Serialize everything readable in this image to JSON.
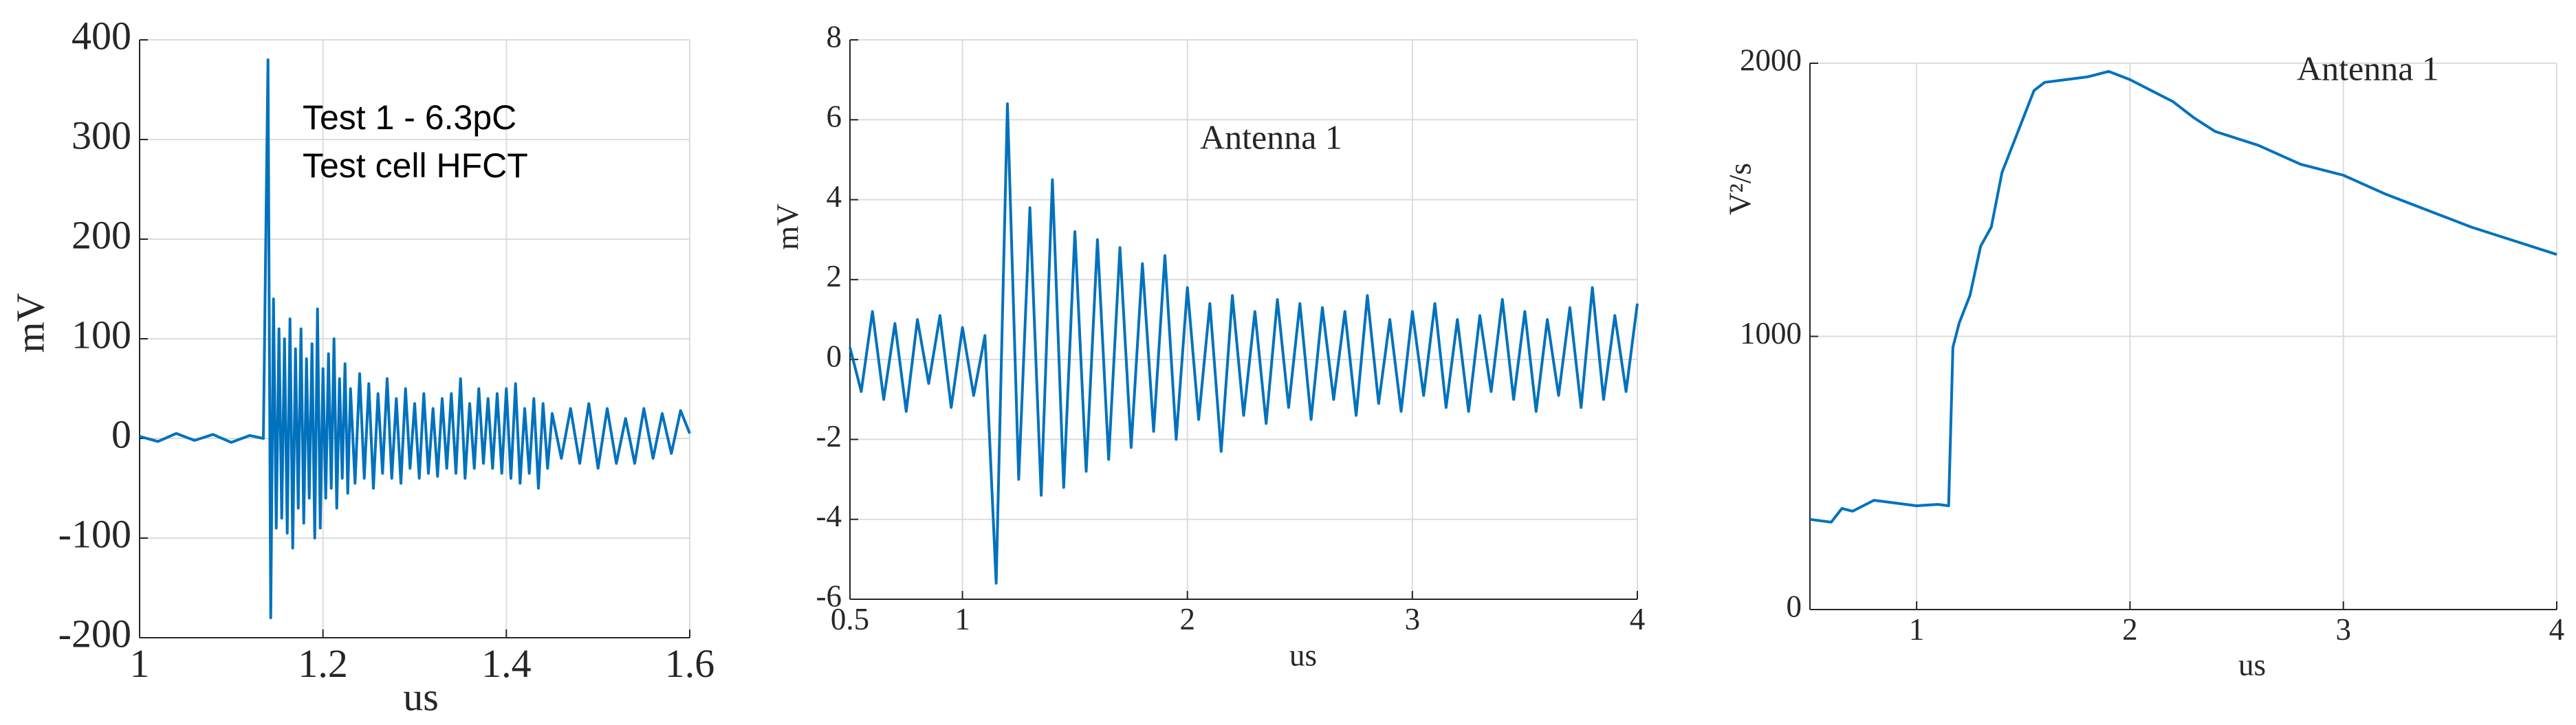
{
  "chart_data": [
    {
      "type": "line",
      "xlabel": "us",
      "ylabel": "mV",
      "annotations": [
        "Test 1 - 6.3pC",
        "Test cell HFCT"
      ],
      "color": "#0072bd",
      "grid": true,
      "xlim": [
        1,
        1.6
      ],
      "ylim": [
        -200,
        400
      ],
      "xticks": [
        1,
        1.2,
        1.4,
        1.6
      ],
      "yticks": [
        -200,
        -100,
        0,
        100,
        200,
        300,
        400
      ],
      "x": [
        1,
        1.02,
        1.04,
        1.06,
        1.08,
        1.1,
        1.12,
        1.135,
        1.14,
        1.143,
        1.146,
        1.149,
        1.152,
        1.155,
        1.158,
        1.161,
        1.164,
        1.167,
        1.17,
        1.173,
        1.176,
        1.179,
        1.182,
        1.185,
        1.188,
        1.191,
        1.194,
        1.197,
        1.2,
        1.203,
        1.206,
        1.209,
        1.212,
        1.215,
        1.218,
        1.221,
        1.224,
        1.227,
        1.23,
        1.235,
        1.24,
        1.245,
        1.25,
        1.255,
        1.26,
        1.265,
        1.27,
        1.275,
        1.28,
        1.285,
        1.29,
        1.295,
        1.3,
        1.305,
        1.31,
        1.315,
        1.32,
        1.325,
        1.33,
        1.335,
        1.34,
        1.345,
        1.35,
        1.355,
        1.36,
        1.365,
        1.37,
        1.375,
        1.38,
        1.385,
        1.39,
        1.395,
        1.4,
        1.405,
        1.41,
        1.415,
        1.42,
        1.425,
        1.43,
        1.435,
        1.44,
        1.445,
        1.45,
        1.46,
        1.47,
        1.48,
        1.49,
        1.5,
        1.51,
        1.52,
        1.53,
        1.54,
        1.55,
        1.56,
        1.57,
        1.58,
        1.59,
        1.6
      ],
      "values": [
        2,
        -3,
        5,
        -2,
        4,
        -4,
        3,
        0,
        380,
        -180,
        140,
        -90,
        110,
        -80,
        100,
        -95,
        120,
        -110,
        90,
        -70,
        110,
        -85,
        80,
        -60,
        95,
        -100,
        130,
        -90,
        70,
        -60,
        85,
        -50,
        100,
        -70,
        60,
        -40,
        75,
        -55,
        50,
        -45,
        65,
        -40,
        55,
        -50,
        45,
        -35,
        60,
        -40,
        40,
        -45,
        50,
        -30,
        35,
        -40,
        45,
        -35,
        30,
        -38,
        40,
        -30,
        45,
        -35,
        60,
        -40,
        35,
        -30,
        50,
        -25,
        40,
        -30,
        45,
        -35,
        50,
        -40,
        55,
        -45,
        30,
        -35,
        40,
        -50,
        35,
        -30,
        25,
        -20,
        30,
        -25,
        35,
        -30,
        30,
        -25,
        20,
        -25,
        30,
        -20,
        25,
        -15,
        28,
        5
      ]
    },
    {
      "type": "line",
      "xlabel": "us",
      "ylabel": "mV",
      "annotations": [
        "Antenna 1"
      ],
      "color": "#0072bd",
      "grid": true,
      "xlim": [
        0.5,
        4
      ],
      "ylim": [
        -6,
        8
      ],
      "xticks": [
        0.5,
        1,
        2,
        3,
        4
      ],
      "yticks": [
        -6,
        -4,
        -2,
        0,
        2,
        4,
        6,
        8
      ],
      "x": [
        0.5,
        0.55,
        0.6,
        0.65,
        0.7,
        0.75,
        0.8,
        0.85,
        0.9,
        0.95,
        1,
        1.05,
        1.1,
        1.15,
        1.2,
        1.25,
        1.3,
        1.35,
        1.4,
        1.45,
        1.5,
        1.55,
        1.6,
        1.65,
        1.7,
        1.75,
        1.8,
        1.85,
        1.9,
        1.95,
        2,
        2.05,
        2.1,
        2.15,
        2.2,
        2.25,
        2.3,
        2.35,
        2.4,
        2.45,
        2.5,
        2.55,
        2.6,
        2.65,
        2.7,
        2.75,
        2.8,
        2.85,
        2.9,
        2.95,
        3,
        3.05,
        3.1,
        3.15,
        3.2,
        3.25,
        3.3,
        3.35,
        3.4,
        3.45,
        3.5,
        3.55,
        3.6,
        3.65,
        3.7,
        3.75,
        3.8,
        3.85,
        3.9,
        3.95,
        4
      ],
      "values": [
        0.3,
        -0.8,
        1.2,
        -1.0,
        0.9,
        -1.3,
        1.0,
        -0.6,
        1.1,
        -1.2,
        0.8,
        -0.9,
        0.6,
        -5.6,
        6.4,
        -3.0,
        3.8,
        -3.4,
        4.5,
        -3.2,
        3.2,
        -2.8,
        3.0,
        -2.5,
        2.8,
        -2.2,
        2.4,
        -1.8,
        2.6,
        -2.0,
        1.8,
        -1.5,
        1.4,
        -2.3,
        1.6,
        -1.4,
        1.2,
        -1.6,
        1.5,
        -1.2,
        1.4,
        -1.5,
        1.3,
        -1.0,
        1.2,
        -1.4,
        1.6,
        -1.1,
        1.0,
        -1.3,
        1.2,
        -0.9,
        1.4,
        -1.2,
        1.0,
        -1.3,
        1.1,
        -0.8,
        1.5,
        -1.0,
        1.2,
        -1.3,
        1.0,
        -0.9,
        1.3,
        -1.2,
        1.8,
        -1.0,
        1.1,
        -0.8,
        1.4
      ]
    },
    {
      "type": "line",
      "xlabel": "us",
      "ylabel": "V²/s",
      "annotations": [
        "Antenna 1"
      ],
      "color": "#0072bd",
      "grid": true,
      "xlim": [
        0.5,
        4
      ],
      "ylim": [
        0,
        2000
      ],
      "xticks": [
        1,
        2,
        3,
        4
      ],
      "yticks": [
        0,
        1000,
        2000
      ],
      "x": [
        0.5,
        0.6,
        0.65,
        0.7,
        0.8,
        0.9,
        1,
        1.1,
        1.15,
        1.17,
        1.2,
        1.25,
        1.3,
        1.35,
        1.4,
        1.45,
        1.5,
        1.55,
        1.6,
        1.7,
        1.8,
        1.9,
        2,
        2.1,
        2.2,
        2.3,
        2.4,
        2.6,
        2.8,
        3,
        3.2,
        3.4,
        3.6,
        3.8,
        4
      ],
      "values": [
        330,
        320,
        370,
        360,
        400,
        390,
        380,
        385,
        380,
        960,
        1050,
        1150,
        1330,
        1400,
        1600,
        1700,
        1800,
        1900,
        1930,
        1940,
        1950,
        1970,
        1940,
        1900,
        1860,
        1800,
        1750,
        1700,
        1630,
        1590,
        1520,
        1460,
        1400,
        1350,
        1300
      ]
    }
  ]
}
